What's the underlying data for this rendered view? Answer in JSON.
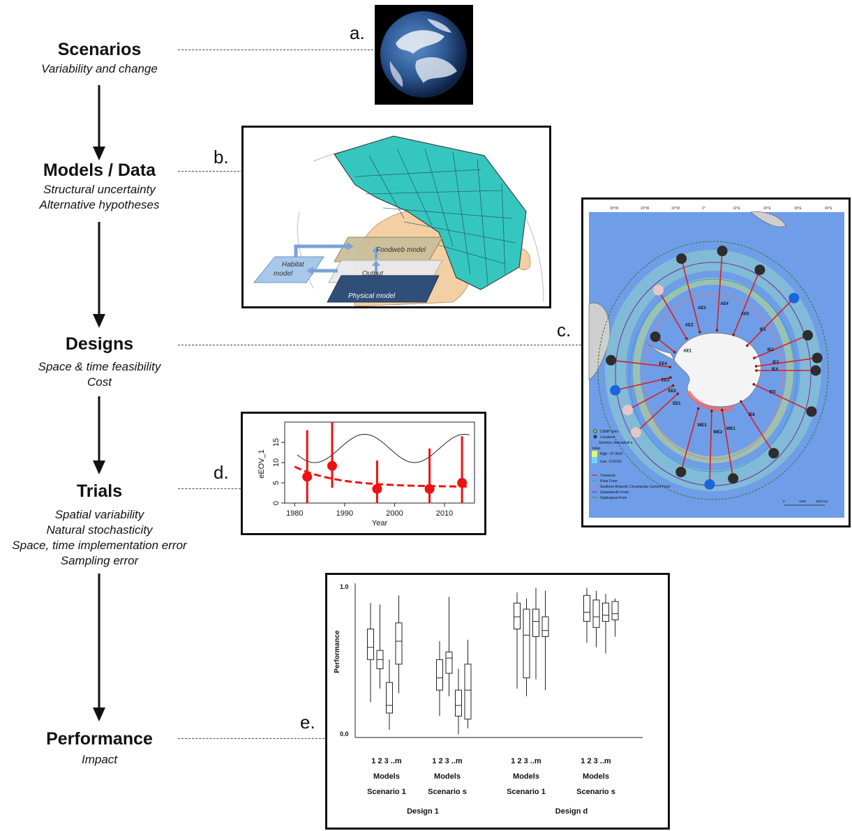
{
  "stages": [
    {
      "title": "Scenarios",
      "subs": [
        "Variability and change"
      ]
    },
    {
      "title": "Models / Data",
      "subs": [
        "Structural uncertainty",
        "Alternative hypotheses"
      ]
    },
    {
      "title": "Designs",
      "subs": [
        "Space & time feasibility",
        "Cost"
      ]
    },
    {
      "title": "Trials",
      "subs": [
        "Spatial variability",
        "Natural stochasticity",
        "Space, time implementation error",
        "Sampling error"
      ]
    },
    {
      "title": "Performance",
      "subs": [
        "Impact"
      ]
    }
  ],
  "panel_labels": [
    "a.",
    "b.",
    "c.",
    "d.",
    "e."
  ],
  "panel_b": {
    "foodweb": "Foodweb model",
    "output": "Output",
    "physical": "Physical model",
    "habitat_line1": "Habitat",
    "habitat_line2": "model",
    "ocean_color": "#36c6c0",
    "land_color": "#f5cfa4"
  },
  "panel_c": {
    "top_ticks": [
      "30°W",
      "20°W",
      "10°W",
      "0°",
      "10°E",
      "20°E",
      "30°E",
      "40°E"
    ],
    "transects": [
      "AE1",
      "AE2",
      "AE3",
      "AE4",
      "AE5",
      "EE1",
      "EE2",
      "EE3",
      "EE4",
      "IE1",
      "IE2",
      "IE3",
      "IE4",
      "IE5",
      "IE6",
      "WE1",
      "WE2",
      "WE3"
    ],
    "legend": [
      "CEMP sites",
      "Locations",
      "Summer chlorophyll a",
      "Value",
      "High : 67.9541",
      "Low : 0.01115",
      "Transects",
      "Polar Front",
      "Southern Antarctic Circumpolar Current Front",
      "Subantarctic Front",
      "Subtropical Front"
    ],
    "scale": [
      "0",
      "1000",
      "2000 km"
    ],
    "colors": {
      "ocean": "#6f9de8",
      "transect": "#d62020",
      "dot_black": "#2d2d2d",
      "dot_blue": "#1a64e0",
      "dot_pink": "#e8c6c8"
    }
  },
  "chart_data": [
    {
      "type": "line",
      "ylabel": "eEOV_1",
      "xlabel": "Year",
      "xlim": [
        1978,
        2016
      ],
      "ylim": [
        0,
        20
      ],
      "xticks": [
        1980,
        1990,
        2000,
        2010
      ],
      "yticks": [
        0,
        5,
        10,
        15
      ],
      "points": [
        {
          "x": 1982.5,
          "y": 6.5,
          "lo": 0,
          "hi": 18
        },
        {
          "x": 1987.5,
          "y": 9.2,
          "lo": 3.8,
          "hi": 20
        },
        {
          "x": 1996.5,
          "y": 3.5,
          "lo": 0,
          "hi": 10.5
        },
        {
          "x": 2007,
          "y": 3.5,
          "lo": 0,
          "hi": 13.5
        },
        {
          "x": 2013.5,
          "y": 5,
          "lo": 0,
          "hi": 16.5
        }
      ],
      "trend": {
        "start": 9,
        "end": 4,
        "rate": 0.12
      },
      "cycle": {
        "mean": 13.5,
        "amplitude": 3.5,
        "period": 20,
        "peak": 1994
      },
      "colors": {
        "points": "#ee1111",
        "cycle": "#222222"
      }
    },
    {
      "type": "box",
      "ylabel": "Performance",
      "ylim": [
        0,
        1
      ],
      "yticks": [
        "0.0",
        "1.0"
      ],
      "groups": [
        {
          "models": "1  2  3 ..m",
          "models_label": "Models",
          "scenario": "Scenario 1",
          "boxes": [
            {
              "min": 0.23,
              "q1": 0.51,
              "med": 0.59,
              "q3": 0.71,
              "max": 0.88
            },
            {
              "min": 0.32,
              "q1": 0.45,
              "med": 0.51,
              "q3": 0.57,
              "max": 0.87
            },
            {
              "min": 0.05,
              "q1": 0.16,
              "med": 0.21,
              "q3": 0.36,
              "max": 0.51
            },
            {
              "min": 0.29,
              "q1": 0.48,
              "med": 0.63,
              "q3": 0.75,
              "max": 0.93
            }
          ]
        },
        {
          "models": "1  2  3 ..m",
          "models_label": "Models",
          "scenario": "Scenario s",
          "boxes": [
            {
              "min": 0.14,
              "q1": 0.31,
              "med": 0.39,
              "q3": 0.51,
              "max": 0.63
            },
            {
              "min": 0.27,
              "q1": 0.42,
              "med": 0.52,
              "q3": 0.56,
              "max": 0.92
            },
            {
              "min": 0.02,
              "q1": 0.14,
              "med": 0.21,
              "q3": 0.31,
              "max": 0.45
            },
            {
              "min": 0.06,
              "q1": 0.12,
              "med": 0.31,
              "q3": 0.48,
              "max": 0.64
            }
          ]
        },
        {
          "models": "1  2  3 ..m",
          "models_label": "Models",
          "scenario": "Scenario 1",
          "boxes": [
            {
              "min": 0.32,
              "q1": 0.71,
              "med": 0.79,
              "q3": 0.88,
              "max": 0.95
            },
            {
              "min": 0.27,
              "q1": 0.39,
              "med": 0.67,
              "q3": 0.84,
              "max": 0.91
            },
            {
              "min": 0.38,
              "q1": 0.66,
              "med": 0.76,
              "q3": 0.84,
              "max": 0.98
            },
            {
              "min": 0.31,
              "q1": 0.66,
              "med": 0.7,
              "q3": 0.79,
              "max": 0.96
            }
          ]
        },
        {
          "models": "1  2  3 ..m",
          "models_label": "Models",
          "scenario": "Scenario s",
          "boxes": [
            {
              "min": 0.62,
              "q1": 0.76,
              "med": 0.82,
              "q3": 0.93,
              "max": 0.98
            },
            {
              "min": 0.59,
              "q1": 0.72,
              "med": 0.79,
              "q3": 0.9,
              "max": 0.96
            },
            {
              "min": 0.55,
              "q1": 0.76,
              "med": 0.8,
              "q3": 0.88,
              "max": 0.94
            },
            {
              "min": 0.66,
              "q1": 0.77,
              "med": 0.81,
              "q3": 0.89,
              "max": 0.91
            }
          ]
        }
      ],
      "designs": [
        "Design 1",
        "Design d"
      ]
    }
  ]
}
